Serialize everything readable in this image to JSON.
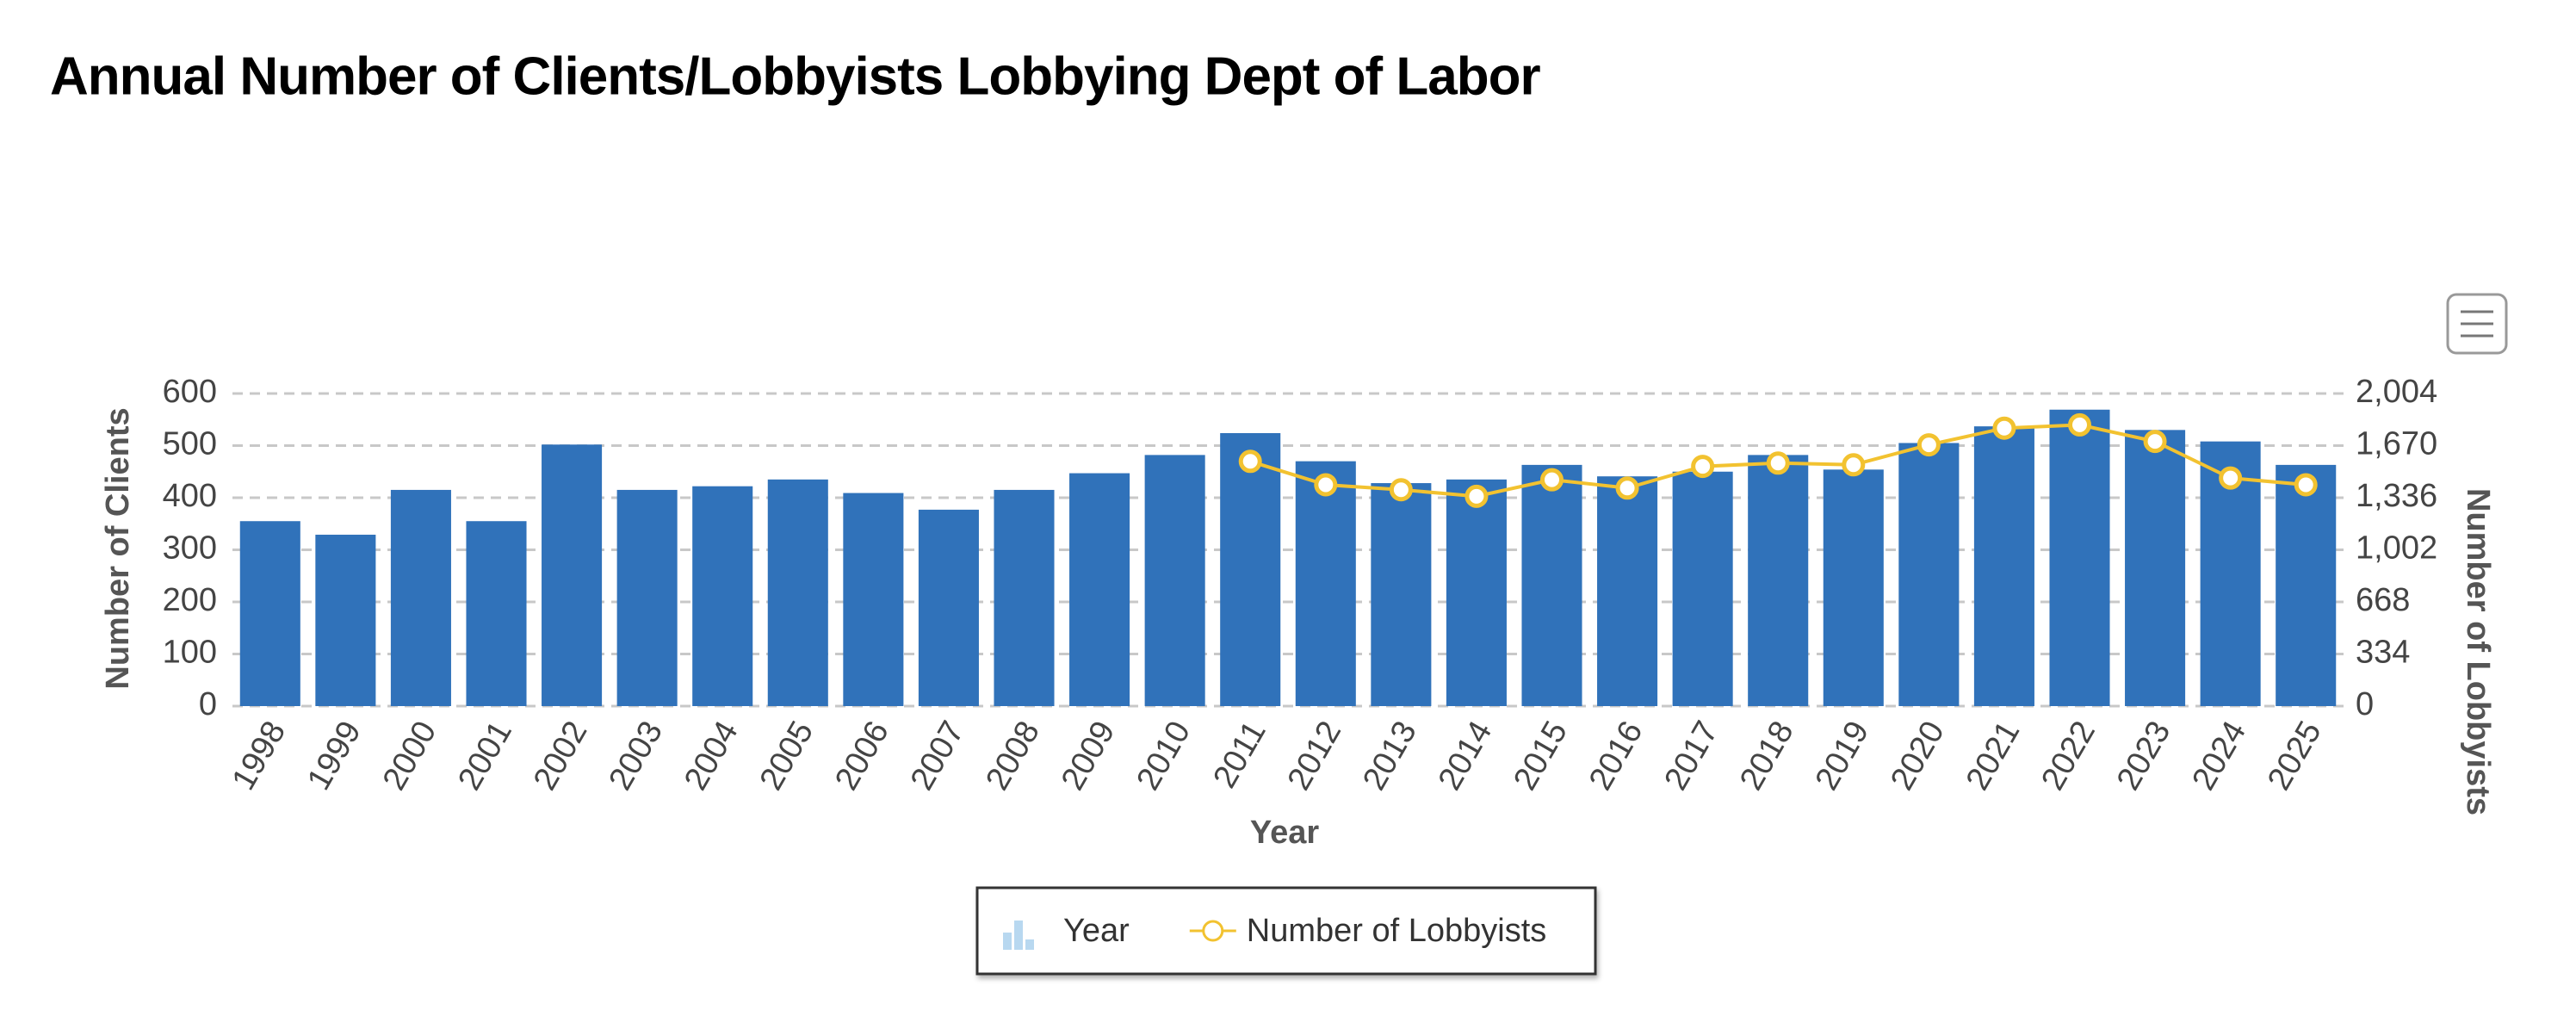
{
  "chart_data": {
    "type": "bar",
    "title": "Annual Number of Clients/Lobbyists Lobbying Dept of Labor",
    "x_label": "Year",
    "y_label": "Number of Clients",
    "y2_label": "Number of Lobbyists",
    "categories": [
      "1998",
      "1999",
      "2000",
      "2001",
      "2002",
      "2003",
      "2004",
      "2005",
      "2006",
      "2007",
      "2008",
      "2009",
      "2010",
      "2011",
      "2012",
      "2013",
      "2014",
      "2015",
      "2016",
      "2017",
      "2018",
      "2019",
      "2020",
      "2021",
      "2022",
      "2023",
      "2024",
      "2025"
    ],
    "series": [
      {
        "name": "Year",
        "type": "bar",
        "color": "#3072ba",
        "values": [
          355,
          329,
          415,
          355,
          502,
          415,
          422,
          435,
          409,
          377,
          415,
          447,
          482,
          524,
          470,
          428,
          435,
          463,
          441,
          450,
          482,
          454,
          505,
          537,
          569,
          530,
          508,
          463
        ]
      },
      {
        "name": "Number of Lobbyists",
        "type": "line",
        "axis": "y2",
        "color": "#f2c230",
        "values": [
          null,
          null,
          null,
          null,
          null,
          null,
          null,
          null,
          null,
          null,
          null,
          null,
          null,
          1569,
          1419,
          1387,
          1345,
          1451,
          1398,
          1537,
          1558,
          1547,
          1675,
          1782,
          1803,
          1697,
          1462,
          1419
        ]
      }
    ],
    "ylim": [
      0,
      600
    ],
    "yticks": [
      0,
      100,
      200,
      300,
      400,
      500,
      600
    ],
    "y2lim": [
      0,
      2004
    ],
    "y2ticks": [
      0,
      334,
      668,
      {
        "value": 1002,
        "label": "1,002"
      },
      {
        "value": 1336,
        "label": "1,336"
      },
      {
        "value": 1670,
        "label": "1,670"
      },
      {
        "value": 2004,
        "label": "2,004"
      }
    ],
    "grid": true,
    "legend": "bottom"
  }
}
